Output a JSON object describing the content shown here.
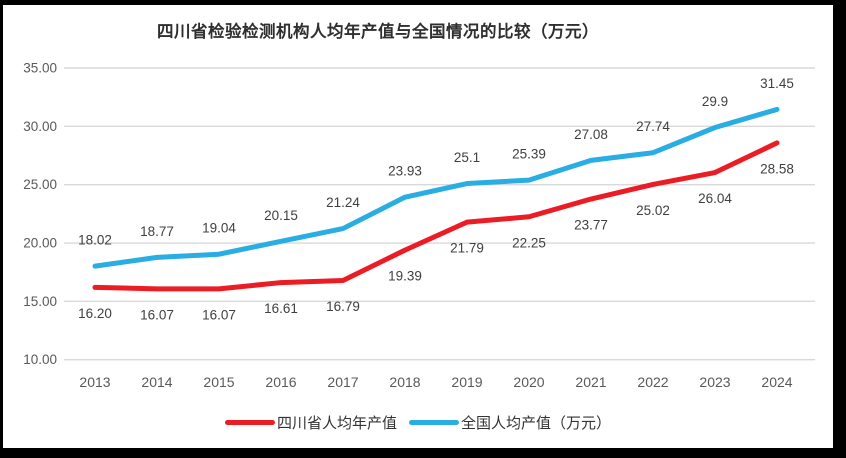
{
  "chart_data": {
    "type": "line",
    "title": "四川省检验检测机构人均年产值与全国情况的比较（万元）",
    "categories": [
      "2013",
      "2014",
      "2015",
      "2016",
      "2017",
      "2018",
      "2019",
      "2020",
      "2021",
      "2022",
      "2023",
      "2024"
    ],
    "series": [
      {
        "id": "sichuan",
        "name": "四川省人均年产值",
        "color": "#ec1c24",
        "label_position": "below",
        "values": [
          16.2,
          16.07,
          16.07,
          16.61,
          16.79,
          19.39,
          21.79,
          22.25,
          23.77,
          25.02,
          26.04,
          28.58
        ],
        "labels": [
          "16.20",
          "16.07",
          "16.07",
          "16.61",
          "16.79",
          "19.39",
          "21.79",
          "22.25",
          "23.77",
          "25.02",
          "26.04",
          "28.58"
        ]
      },
      {
        "id": "national",
        "name": "全国人均产值（万元）",
        "color": "#29ade2",
        "label_position": "above",
        "values": [
          18.02,
          18.77,
          19.04,
          20.15,
          21.24,
          23.93,
          25.1,
          25.39,
          27.08,
          27.74,
          29.9,
          31.45
        ],
        "labels": [
          "18.02",
          "18.77",
          "19.04",
          "20.15",
          "21.24",
          "23.93",
          "25.1",
          "25.39",
          "27.08",
          "27.74",
          "29.9",
          "31.45"
        ]
      }
    ],
    "ylim": [
      10,
      35
    ],
    "ytick_step": 5,
    "ytick_labels": [
      "10.00",
      "15.00",
      "20.00",
      "25.00",
      "30.00",
      "35.00"
    ],
    "grid": "horizontal",
    "legend_position": "bottom",
    "colors": {
      "grid": "#d9d9d9",
      "axis_text": "#595959",
      "data_label_text": "#404040"
    }
  }
}
